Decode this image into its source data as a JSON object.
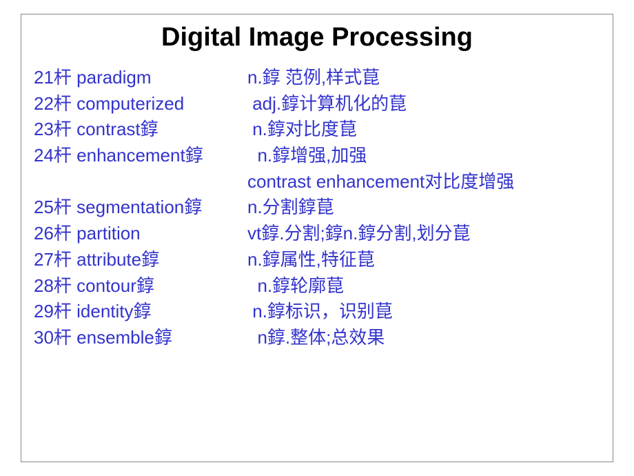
{
  "title": "Digital Image Processing",
  "text_color": "#3333cc",
  "title_color": "#000000",
  "background_color": "#ffffff",
  "border_color": "#888888",
  "title_fontsize": 38,
  "content_fontsize": 26,
  "entries": {
    "e21_term": "21杆 paradigm",
    "e21_def": "n.錞 范例,样式菎",
    "e22_term": "22杆 computerized",
    "e22_def": " adj.錞计算机化的菎",
    "e23_term": "23杆 contrast錞",
    "e23_def": " n.錞对比度菎",
    "e24_term": "24杆 enhancement錞",
    "e24_def": "  n.錞增强,加强",
    "e24_sub": "contrast enhancement对比度增强",
    "e25_term": "25杆 segmentation錞",
    "e25_def": "n.分割錞菎",
    "e26_term": "26杆 partition",
    "e26_def": "vt錞.分割;錞n.錞分割,划分菎",
    "e27_term": "27杆 attribute錞",
    "e27_def": "n.錞属性,特征菎",
    "e28_term": "28杆 contour錞",
    "e28_def": "  n.錞轮廓菎",
    "e29_term": "29杆 identity錞",
    "e29_def": " n.錞标识，识别菎",
    "e30_term": "30杆 ensemble錞",
    "e30_def": "  n錞.整体;总效果"
  }
}
